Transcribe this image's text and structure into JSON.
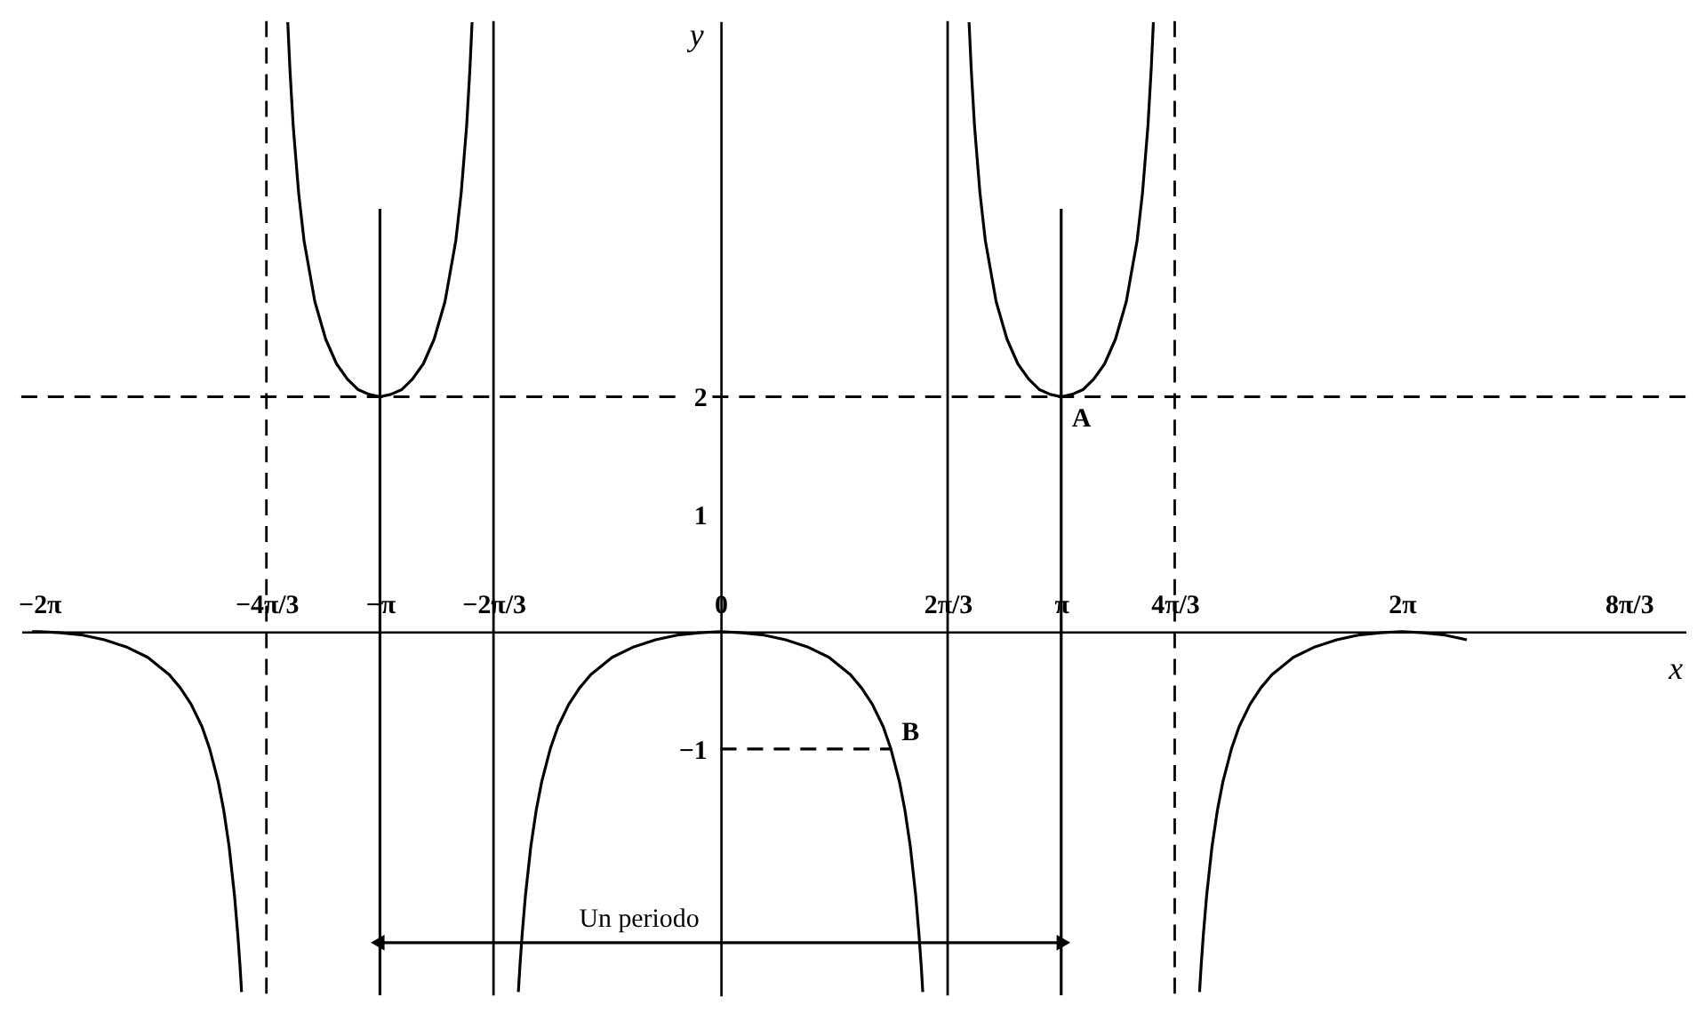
{
  "chart_data": {
    "type": "line",
    "xlabel": "x",
    "ylabel": "y",
    "xlim": [
      -6.45,
      8.9
    ],
    "ylim": [
      -3.1,
      5.2
    ],
    "xticks": [
      {
        "value": -6.2832,
        "label": "−2π"
      },
      {
        "value": -4.1888,
        "label": "−4π/3"
      },
      {
        "value": -3.1416,
        "label": "−π"
      },
      {
        "value": -2.0944,
        "label": "−2π/3"
      },
      0,
      {
        "value": 2.0944,
        "label": "2π/3"
      },
      {
        "value": 3.1416,
        "label": "π"
      },
      {
        "value": 4.1888,
        "label": "4π/3"
      },
      {
        "value": 6.2832,
        "label": "2π"
      },
      {
        "value": 8.3776,
        "label": "8π/3"
      }
    ],
    "yticks": [
      -1,
      1,
      2
    ],
    "grid": false,
    "series": [
      {
        "color": "#000000",
        "x": [
          -6.35,
          -6.283,
          -6.083,
          -5.883,
          -5.683,
          -5.483,
          -5.283,
          -5.083,
          -4.983,
          -4.883,
          -4.783,
          -4.712,
          -4.633,
          -4.583,
          -4.533,
          -4.483,
          -4.453,
          -4.433,
          -4.423,
          -4.418
        ],
        "values": [
          0,
          0,
          -0.01,
          -0.03,
          -0.07,
          -0.13,
          -0.22,
          -0.37,
          -0.48,
          -0.62,
          -0.81,
          -1.0,
          -1.28,
          -1.52,
          -1.83,
          -2.25,
          -2.58,
          -2.84,
          -2.99,
          -3.07
        ]
      },
      {
        "color": "#000000",
        "x": [
          -3.992,
          -3.972,
          -3.942,
          -3.892,
          -3.842,
          -3.742,
          -3.642,
          -3.542,
          -3.442,
          -3.342,
          -3.242,
          -3.142,
          -3.042,
          -2.942,
          -2.842,
          -2.742,
          -2.642,
          -2.542,
          -2.442,
          -2.392,
          -2.342,
          -2.312,
          -2.292
        ],
        "values": [
          5.19,
          4.79,
          4.31,
          3.74,
          3.33,
          2.81,
          2.49,
          2.28,
          2.15,
          2.06,
          2.02,
          2,
          2.02,
          2.06,
          2.15,
          2.28,
          2.49,
          2.81,
          3.33,
          3.74,
          4.31,
          4.79,
          5.19
        ]
      },
      {
        "color": "#000000",
        "x": [
          -1.865,
          -1.86,
          -1.85,
          -1.83,
          -1.8,
          -1.75,
          -1.7,
          -1.65,
          -1.571,
          -1.5,
          -1.4,
          -1.3,
          -1.2,
          -1.0,
          -0.8,
          -0.6,
          -0.4,
          -0.2,
          0,
          0.2,
          0.4,
          0.6,
          0.8,
          1.0,
          1.2,
          1.3,
          1.4,
          1.5,
          1.571,
          1.65,
          1.7,
          1.75,
          1.8,
          1.83,
          1.85,
          1.86,
          1.865
        ],
        "values": [
          -3.07,
          -2.99,
          -2.84,
          -2.58,
          -2.25,
          -1.83,
          -1.52,
          -1.28,
          -1.0,
          -0.81,
          -0.62,
          -0.48,
          -0.37,
          -0.22,
          -0.13,
          -0.07,
          -0.03,
          -0.01,
          0,
          -0.01,
          -0.03,
          -0.07,
          -0.13,
          -0.22,
          -0.37,
          -0.48,
          -0.62,
          -0.81,
          -1.0,
          -1.28,
          -1.52,
          -1.83,
          -2.25,
          -2.58,
          -2.84,
          -2.99,
          -3.07
        ]
      },
      {
        "color": "#000000",
        "x": [
          2.292,
          2.312,
          2.342,
          2.392,
          2.442,
          2.542,
          2.642,
          2.742,
          2.842,
          2.942,
          3.042,
          3.142,
          3.242,
          3.342,
          3.442,
          3.542,
          3.642,
          3.742,
          3.842,
          3.892,
          3.942,
          3.972,
          3.992
        ],
        "values": [
          5.19,
          4.79,
          4.31,
          3.74,
          3.33,
          2.81,
          2.49,
          2.28,
          2.15,
          2.06,
          2.02,
          2,
          2.02,
          2.06,
          2.15,
          2.28,
          2.49,
          2.81,
          3.33,
          3.74,
          4.31,
          4.79,
          5.19
        ]
      },
      {
        "color": "#000000",
        "x": [
          4.418,
          4.423,
          4.433,
          4.453,
          4.483,
          4.533,
          4.583,
          4.633,
          4.712,
          4.783,
          4.883,
          4.983,
          5.083,
          5.283,
          5.483,
          5.683,
          5.883,
          6.083,
          6.283,
          6.483,
          6.683,
          6.883
        ],
        "values": [
          -3.07,
          -2.99,
          -2.84,
          -2.58,
          -2.25,
          -1.83,
          -1.52,
          -1.28,
          -1.0,
          -0.81,
          -0.62,
          -0.48,
          -0.37,
          -0.22,
          -0.13,
          -0.07,
          -0.03,
          -0.01,
          0,
          -0.01,
          -0.03,
          -0.07
        ]
      },
      {
        "color": "#000000",
        "line_style": "dashed",
        "x": [
          0,
          1.571
        ],
        "values": [
          -1,
          -1
        ]
      },
      {
        "color": "#000000",
        "x": [
          -3.1416,
          -3.1416
        ],
        "values": [
          3.6,
          -3.1
        ]
      },
      {
        "color": "#000000",
        "x": [
          3.1416,
          3.1416
        ],
        "values": [
          3.6,
          -3.1
        ]
      },
      {
        "name": "Un periodo",
        "color": "#000000",
        "marker": "triangle",
        "x": [
          -3.1416,
          3.1416
        ],
        "values": [
          -2.65,
          -2.65
        ]
      }
    ],
    "ref_lines": [
      {
        "axis": "x",
        "value": -4.1888,
        "line_style": "dashed",
        "color": "#000000"
      },
      {
        "axis": "x",
        "value": -2.0944,
        "line_style": "solid",
        "color": "#000000"
      },
      {
        "axis": "x",
        "value": 2.0944,
        "line_style": "solid",
        "color": "#000000"
      },
      {
        "axis": "x",
        "value": 4.1888,
        "line_style": "dashed",
        "color": "#000000"
      },
      {
        "axis": "y",
        "value": 2,
        "line_style": "dashed",
        "color": "#000000"
      }
    ],
    "annotations": [
      {
        "text": "A",
        "x": 3.1416,
        "y": 2
      },
      {
        "text": "B",
        "x": 1.571,
        "y": -1
      }
    ]
  }
}
